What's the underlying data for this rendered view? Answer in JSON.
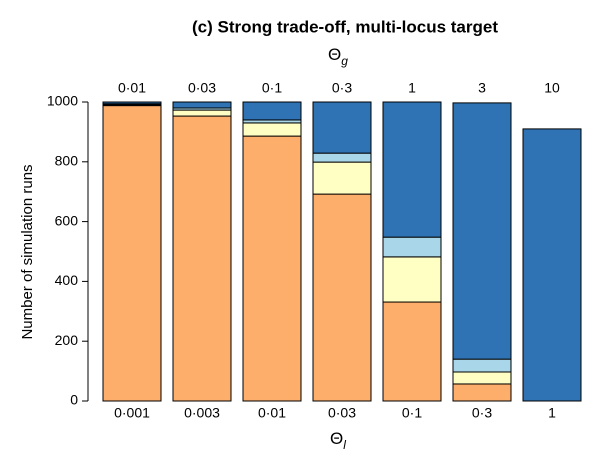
{
  "chart_data": {
    "type": "stacked_bar",
    "title": "(c) Strong trade-off, multi-locus target",
    "top_label": {
      "symbol": "Θ",
      "subscript": "g"
    },
    "bottom_label": {
      "symbol": "Θ",
      "subscript": "l"
    },
    "y_label": "Number of simulation runs",
    "categories": [
      "0·001",
      "0·003",
      "0·01",
      "0·03",
      "0·1",
      "0·3",
      "1"
    ],
    "top_categories": [
      "0·01",
      "0·03",
      "0·1",
      "0·3",
      "1",
      "3",
      "10"
    ],
    "series": [
      {
        "color": "#fdae6b",
        "values": [
          988,
          953,
          886,
          692,
          331,
          57,
          0
        ]
      },
      {
        "color": "#ffffc4",
        "values": [
          3,
          20,
          44,
          107,
          151,
          40,
          0
        ]
      },
      {
        "color": "#a9d6e8",
        "values": [
          3,
          7,
          10,
          30,
          66,
          43,
          0
        ]
      },
      {
        "color": "#2f73b4",
        "values": [
          6,
          20,
          60,
          171,
          452,
          857,
          910
        ]
      }
    ],
    "ylim": [
      0,
      1000
    ],
    "yticks": [
      0,
      200,
      400,
      600,
      800,
      1000
    ]
  }
}
